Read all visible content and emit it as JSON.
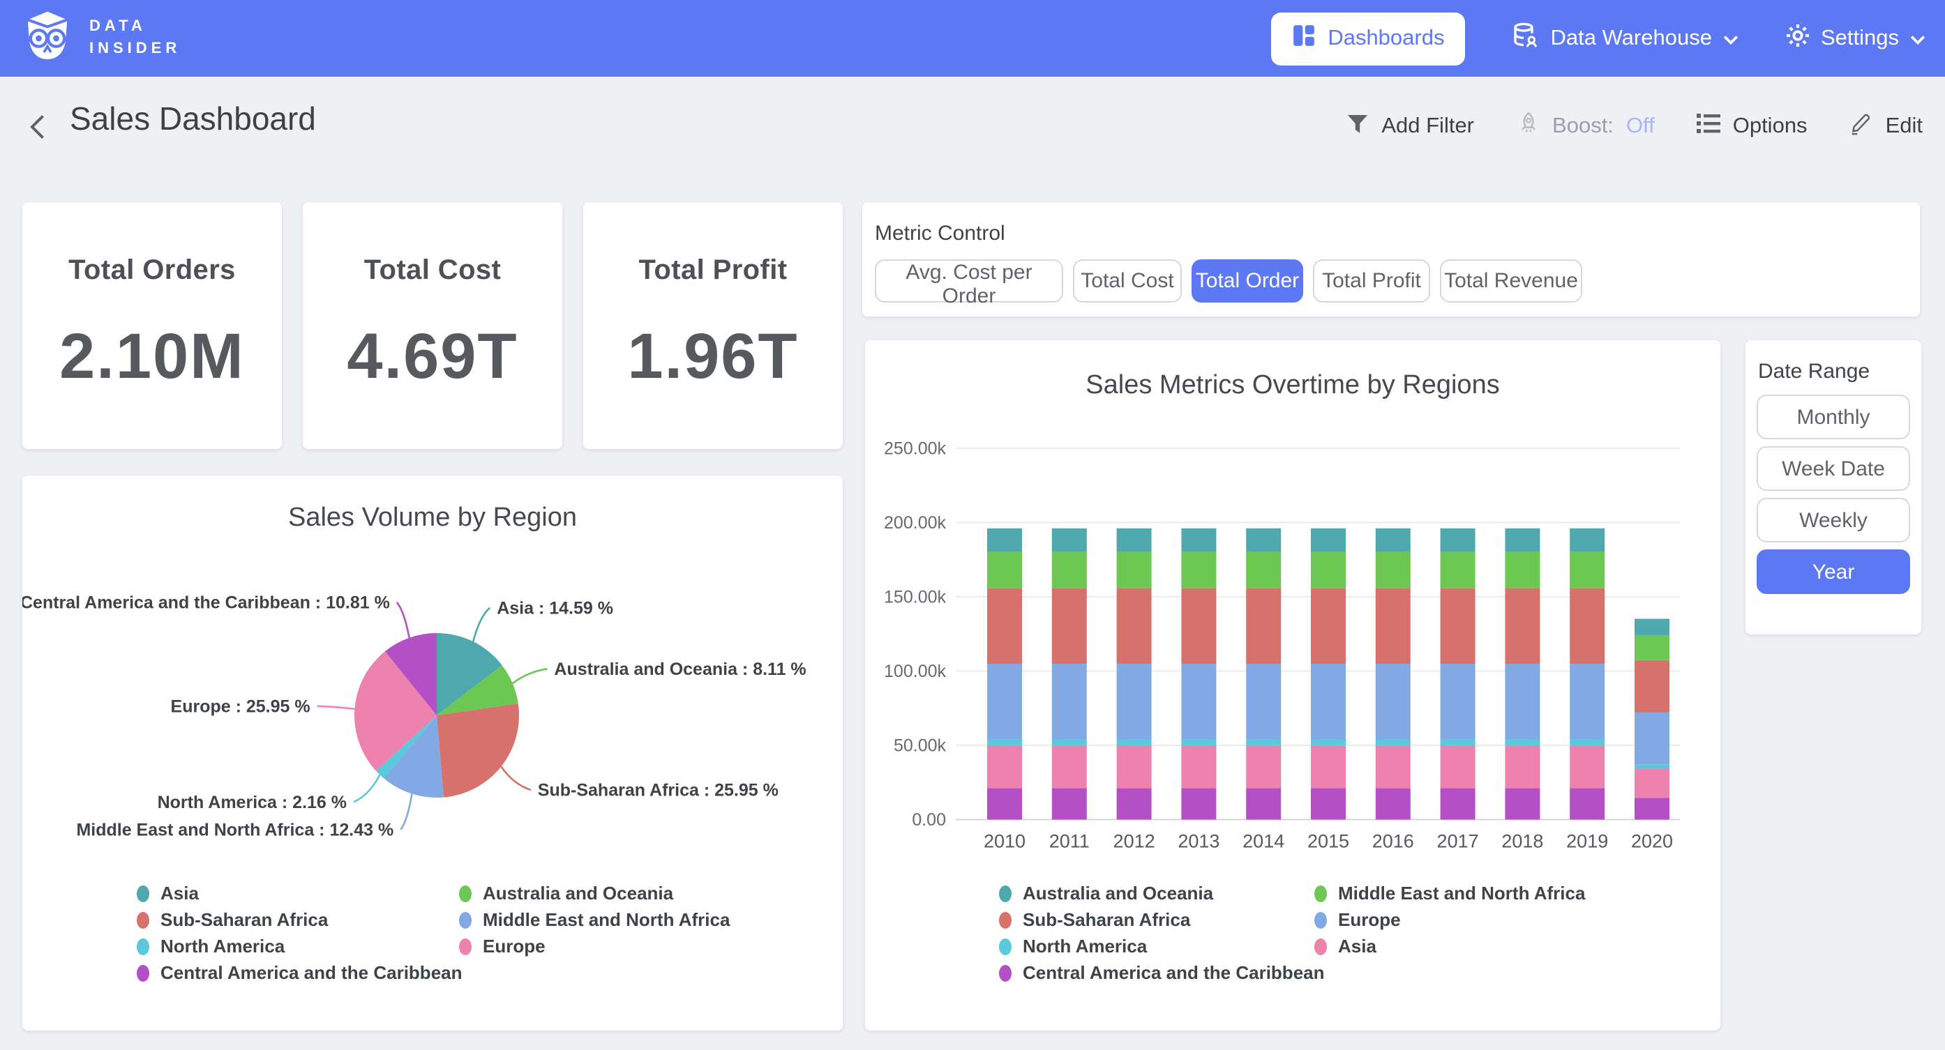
{
  "navbar": {
    "brand_line1": "DATA",
    "brand_line2": "INSIDER",
    "items": [
      {
        "label": "Dashboards",
        "active": true
      },
      {
        "label": "Data Warehouse",
        "active": false
      },
      {
        "label": "Settings",
        "active": false
      }
    ]
  },
  "header": {
    "title": "Sales Dashboard",
    "actions": {
      "add_filter": "Add Filter",
      "boost_label": "Boost:",
      "boost_state": "Off",
      "options": "Options",
      "edit": "Edit"
    }
  },
  "kpis": [
    {
      "title": "Total Orders",
      "value": "2.10M"
    },
    {
      "title": "Total Cost",
      "value": "4.69T"
    },
    {
      "title": "Total Profit",
      "value": "1.96T"
    }
  ],
  "metric_control": {
    "label": "Metric Control",
    "options": [
      "Avg. Cost per Order",
      "Total Cost",
      "Total Order",
      "Total Profit",
      "Total Revenue"
    ],
    "selected": "Total Order"
  },
  "date_range": {
    "label": "Date Range",
    "options": [
      "Monthly",
      "Week Date",
      "Weekly",
      "Year"
    ],
    "selected": "Year"
  },
  "colors": {
    "accent": "#5c78f2",
    "boost_off": "#a9b6f2",
    "page_bg": "#eff0f4",
    "teal": "#4fa8ab",
    "green": "#6cc853",
    "red": "#d7716c",
    "periwinkle": "#82a9e4",
    "cyan": "#5bc8dc",
    "pink": "#ee82ae",
    "purple": "#b44fc6"
  },
  "chart_data": [
    {
      "type": "pie",
      "title": "Sales Volume by Region",
      "label_format": "{label} : {pct} %",
      "legend_position": "bottom",
      "slices": [
        {
          "label": "Asia",
          "pct": "14.59",
          "color": "#4fa8ab"
        },
        {
          "label": "Australia and Oceania",
          "pct": "8.11",
          "color": "#6cc853"
        },
        {
          "label": "Sub-Saharan Africa",
          "pct": "25.95",
          "color": "#d7716c"
        },
        {
          "label": "Middle East and North Africa",
          "pct": "12.43",
          "color": "#82a9e4"
        },
        {
          "label": "North America",
          "pct": "2.16",
          "color": "#5bc8dc"
        },
        {
          "label": "Europe",
          "pct": "25.95",
          "color": "#ee82ae"
        },
        {
          "label": "Central America and the Caribbean",
          "pct": "10.81",
          "color": "#b44fc6"
        }
      ]
    },
    {
      "type": "bar",
      "stacked": true,
      "title": "Sales Metrics Overtime by Regions",
      "xlabel": "",
      "ylabel": "",
      "ylim": [
        0,
        250000
      ],
      "grid": true,
      "legend_position": "bottom",
      "categories": [
        "2010",
        "2011",
        "2012",
        "2013",
        "2014",
        "2015",
        "2016",
        "2017",
        "2018",
        "2019",
        "2020"
      ],
      "yticks": [
        {
          "value": 0,
          "label": "0.00"
        },
        {
          "value": 50000,
          "label": "50.00k"
        },
        {
          "value": 100000,
          "label": "100.00k"
        },
        {
          "value": 150000,
          "label": "150.00k"
        },
        {
          "value": 200000,
          "label": "200.00k"
        },
        {
          "value": 250000,
          "label": "250.00k"
        }
      ],
      "series": [
        {
          "name": "Central America and the Caribbean",
          "color": "#b44fc6",
          "values": [
            21200,
            21200,
            21200,
            21200,
            21200,
            21200,
            21200,
            21200,
            21200,
            21200,
            14600
          ]
        },
        {
          "name": "Asia",
          "color": "#ee82ae",
          "values": [
            28600,
            28600,
            28600,
            28600,
            28600,
            28600,
            28600,
            28600,
            28600,
            28600,
            19700
          ]
        },
        {
          "name": "North America",
          "color": "#5bc8dc",
          "values": [
            4200,
            4200,
            4200,
            4200,
            4200,
            4200,
            4200,
            4200,
            4200,
            4200,
            2900
          ]
        },
        {
          "name": "Europe",
          "color": "#82a9e4",
          "values": [
            50900,
            50900,
            50900,
            50900,
            50900,
            50900,
            50900,
            50900,
            50900,
            50900,
            35100
          ]
        },
        {
          "name": "Sub-Saharan Africa",
          "color": "#d7716c",
          "values": [
            50900,
            50900,
            50900,
            50900,
            50900,
            50900,
            50900,
            50900,
            50900,
            50900,
            35100
          ]
        },
        {
          "name": "Middle East and North Africa",
          "color": "#6cc853",
          "values": [
            24400,
            24400,
            24400,
            24400,
            24400,
            24400,
            24400,
            24400,
            24400,
            24400,
            16800
          ]
        },
        {
          "name": "Australia and Oceania",
          "color": "#4fa8ab",
          "values": [
            15900,
            15900,
            15900,
            15900,
            15900,
            15900,
            15900,
            15900,
            15900,
            15900,
            11000
          ]
        }
      ]
    }
  ]
}
